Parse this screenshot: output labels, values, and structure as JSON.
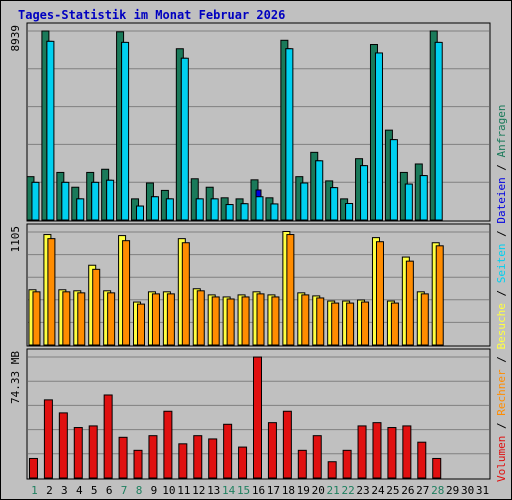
{
  "chart_data": {
    "type": "bar",
    "title": "Tages-Statistik im Monat Februar 2026",
    "background": "#c0c0c0",
    "x": [
      "1",
      "2",
      "3",
      "4",
      "5",
      "6",
      "7",
      "8",
      "9",
      "10",
      "11",
      "12",
      "13",
      "14",
      "15",
      "16",
      "17",
      "18",
      "19",
      "20",
      "21",
      "22",
      "23",
      "24",
      "25",
      "26",
      "27",
      "28",
      "29",
      "30",
      "31"
    ],
    "weekend_days": [
      "1",
      "7",
      "8",
      "14",
      "15",
      "21",
      "22",
      "28"
    ],
    "colors": {
      "anfragen": "#1a7a5a",
      "dateien": "#0000e0",
      "seiten": "#00d0f0",
      "besuche": "#ffff40",
      "rechner": "#ff8c00",
      "volumen": "#e01010",
      "weekend_label": "#208060",
      "weekday_label": "#000000",
      "title": "#0000c0"
    },
    "panels": [
      {
        "id": "hits",
        "ymax": 8939,
        "ymax_label": "8939",
        "series": [
          {
            "name": "Anfragen",
            "color": "#1a7a5a",
            "values": [
              2050,
              8939,
              2250,
              1550,
              2250,
              2400,
              8900,
              1000,
              1750,
              1400,
              8100,
              1950,
              1550,
              1050,
              1000,
              1900,
              1050,
              8500,
              2050,
              3200,
              1850,
              1000,
              2900,
              8300,
              4250,
              2250,
              2650,
              8940
            ]
          },
          {
            "name": "Dateien",
            "color": "#0000e0",
            "values": [
              1780,
              8450,
              1780,
              1000,
              1780,
              1880,
              8400,
              660,
              1100,
              1000,
              7650,
              1000,
              1000,
              730,
              770,
              1420,
              760,
              8100,
              1750,
              2800,
              1530,
              780,
              2570,
              7900,
              3800,
              1700,
              2100,
              8400
            ]
          },
          {
            "name": "Seiten",
            "color": "#00d0f0",
            "values": [
              1780,
              8450,
              1780,
              1000,
              1780,
              1880,
              8400,
              660,
              1100,
              1000,
              7650,
              1000,
              1000,
              730,
              770,
              1100,
              760,
              8100,
              1750,
              2800,
              1530,
              780,
              2570,
              7900,
              3800,
              1700,
              2100,
              8400
            ]
          }
        ]
      },
      {
        "id": "visits",
        "ymax": 1105,
        "ymax_label": "1105",
        "series": [
          {
            "name": "Besuche",
            "color": "#ffff40",
            "values": [
              540,
              1080,
              540,
              530,
              780,
              530,
              1070,
              420,
              520,
              520,
              1040,
              550,
              490,
              470,
              490,
              520,
              490,
              1110,
              510,
              480,
              430,
              430,
              440,
              1050,
              430,
              860,
              520,
              1000
            ]
          },
          {
            "name": "Rechner",
            "color": "#ff8c00",
            "values": [
              520,
              1040,
              520,
              510,
              740,
              510,
              1020,
              400,
              500,
              500,
              1000,
              530,
              470,
              450,
              470,
              500,
              470,
              1080,
              490,
              460,
              410,
              410,
              420,
              1010,
              410,
              820,
              500,
              970
            ]
          }
        ]
      },
      {
        "id": "volume",
        "ymax": 74.33,
        "ymax_label": "74.33 MB",
        "series": [
          {
            "name": "Volumen",
            "color": "#e01010",
            "values": [
              12,
              48,
              40,
              31,
              32,
              51,
              25,
              17,
              26,
              41,
              21,
              26,
              24,
              33,
              19,
              74.3,
              34,
              41,
              17,
              26,
              10,
              17,
              32,
              34,
              31,
              32,
              22,
              12
            ]
          }
        ]
      }
    ],
    "legend": [
      {
        "label": "Volumen",
        "color": "#e01010"
      },
      {
        "label": " / ",
        "color": "#000000"
      },
      {
        "label": "Rechner",
        "color": "#ff8c00"
      },
      {
        "label": " / ",
        "color": "#000000"
      },
      {
        "label": "Besuche",
        "color": "#ffff40"
      },
      {
        "label": " / ",
        "color": "#000000"
      },
      {
        "label": "Seiten",
        "color": "#00d0f0"
      },
      {
        "label": " / ",
        "color": "#000000"
      },
      {
        "label": "Dateien",
        "color": "#0000e0"
      },
      {
        "label": " / ",
        "color": "#000000"
      },
      {
        "label": "Anfragen",
        "color": "#1a7a5a"
      }
    ],
    "legend_placement": "right, rotated vertical",
    "grid": true
  }
}
